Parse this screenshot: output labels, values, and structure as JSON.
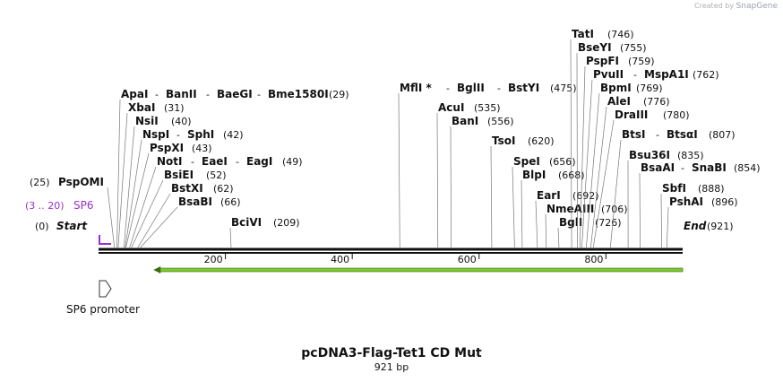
{
  "credit": {
    "prefix": "Created by",
    "brand": "SnapGene"
  },
  "map": {
    "name": "pcDNA3-Flag-Tet1 CD Mut",
    "length_label": "921 bp",
    "total_bp": 921,
    "ticks": [
      200,
      400,
      600,
      800
    ],
    "start_label": "Start",
    "start_pos": "(0)",
    "end_label": "End",
    "end_pos": "(921)"
  },
  "primer": {
    "name": "SP6",
    "range": "(3 .. 20)",
    "color": "#9b30c8"
  },
  "feature": {
    "name": "SP6 promoter"
  },
  "orf": {
    "start_bp": 95,
    "end_bp": 921,
    "direction": "reverse",
    "color": "#7dc832"
  },
  "sites": [
    {
      "pos": 25,
      "names": [
        "PspOMI"
      ],
      "pos_first": true
    },
    {
      "pos": 29,
      "names": [
        "ApaI",
        "BanII",
        "BaeGI",
        "Bme1580I"
      ]
    },
    {
      "pos": 31,
      "names": [
        "XbaI"
      ]
    },
    {
      "pos": 40,
      "names": [
        "NsiI"
      ]
    },
    {
      "pos": 42,
      "names": [
        "NspI",
        "SphI"
      ]
    },
    {
      "pos": 43,
      "names": [
        "PspXI"
      ]
    },
    {
      "pos": 49,
      "names": [
        "NotI",
        "EaeI",
        "EagI"
      ]
    },
    {
      "pos": 52,
      "names": [
        "BsiEI"
      ]
    },
    {
      "pos": 62,
      "names": [
        "BstXI"
      ]
    },
    {
      "pos": 66,
      "names": [
        "BsaBI"
      ]
    },
    {
      "pos": 209,
      "names": [
        "BciVI"
      ]
    },
    {
      "pos": 475,
      "names": [
        "MflI *",
        "BglII",
        "BstYI"
      ]
    },
    {
      "pos": 535,
      "names": [
        "AcuI"
      ]
    },
    {
      "pos": 556,
      "names": [
        "BanI"
      ]
    },
    {
      "pos": 620,
      "names": [
        "TsoI"
      ]
    },
    {
      "pos": 656,
      "names": [
        "SpeI"
      ]
    },
    {
      "pos": 668,
      "names": [
        "BlpI"
      ]
    },
    {
      "pos": 692,
      "names": [
        "EarI"
      ]
    },
    {
      "pos": 706,
      "names": [
        "NmeAIII"
      ]
    },
    {
      "pos": 726,
      "names": [
        "BglI"
      ]
    },
    {
      "pos": 746,
      "names": [
        "TatI"
      ]
    },
    {
      "pos": 755,
      "names": [
        "BseYI"
      ]
    },
    {
      "pos": 759,
      "names": [
        "PspFI"
      ]
    },
    {
      "pos": 762,
      "names": [
        "PvuII",
        "MspA1I"
      ]
    },
    {
      "pos": 769,
      "names": [
        "BpmI"
      ]
    },
    {
      "pos": 776,
      "names": [
        "AleI"
      ]
    },
    {
      "pos": 780,
      "names": [
        "DraIII"
      ]
    },
    {
      "pos": 807,
      "names": [
        "BtsI",
        "BtsαI"
      ]
    },
    {
      "pos": 835,
      "names": [
        "Bsu36I"
      ]
    },
    {
      "pos": 854,
      "names": [
        "BsaAI",
        "SnaBI"
      ]
    },
    {
      "pos": 888,
      "names": [
        "SbfI"
      ]
    },
    {
      "pos": 896,
      "names": [
        "PshAI"
      ]
    }
  ]
}
